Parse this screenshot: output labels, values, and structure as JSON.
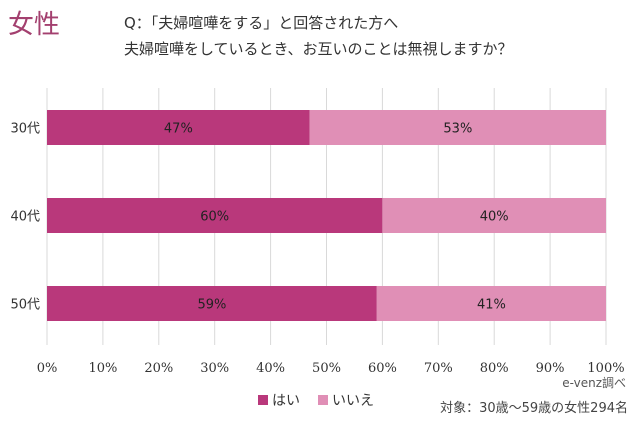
{
  "header": {
    "gender": "女性",
    "question_line1": "Q：「夫婦喧嘩をする」と回答された方へ",
    "question_line2": "夫婦喧嘩をしているとき、お互いのことは無視しますか？"
  },
  "footer": {
    "source": "e-venz調べ",
    "target": "対象：30歳〜59歳の女性294名"
  },
  "chart_data": {
    "type": "bar",
    "orientation": "horizontal",
    "stacked": true,
    "categories": [
      "30代",
      "40代",
      "50代"
    ],
    "series": [
      {
        "name": "はい",
        "values": [
          47,
          60,
          59
        ],
        "labels": [
          "47%",
          "60%",
          "59%"
        ],
        "color": "#b9387b"
      },
      {
        "name": "いいえ",
        "values": [
          53,
          40,
          41
        ],
        "labels": [
          "53%",
          "40%",
          "41%"
        ],
        "color": "#e08fb6"
      }
    ],
    "xlim": [
      0,
      100
    ],
    "xticks": [
      "0%",
      "10%",
      "20%",
      "30%",
      "40%",
      "50%",
      "60%",
      "70%",
      "80%",
      "90%",
      "100%"
    ],
    "grid": true,
    "legend": "bottom"
  }
}
